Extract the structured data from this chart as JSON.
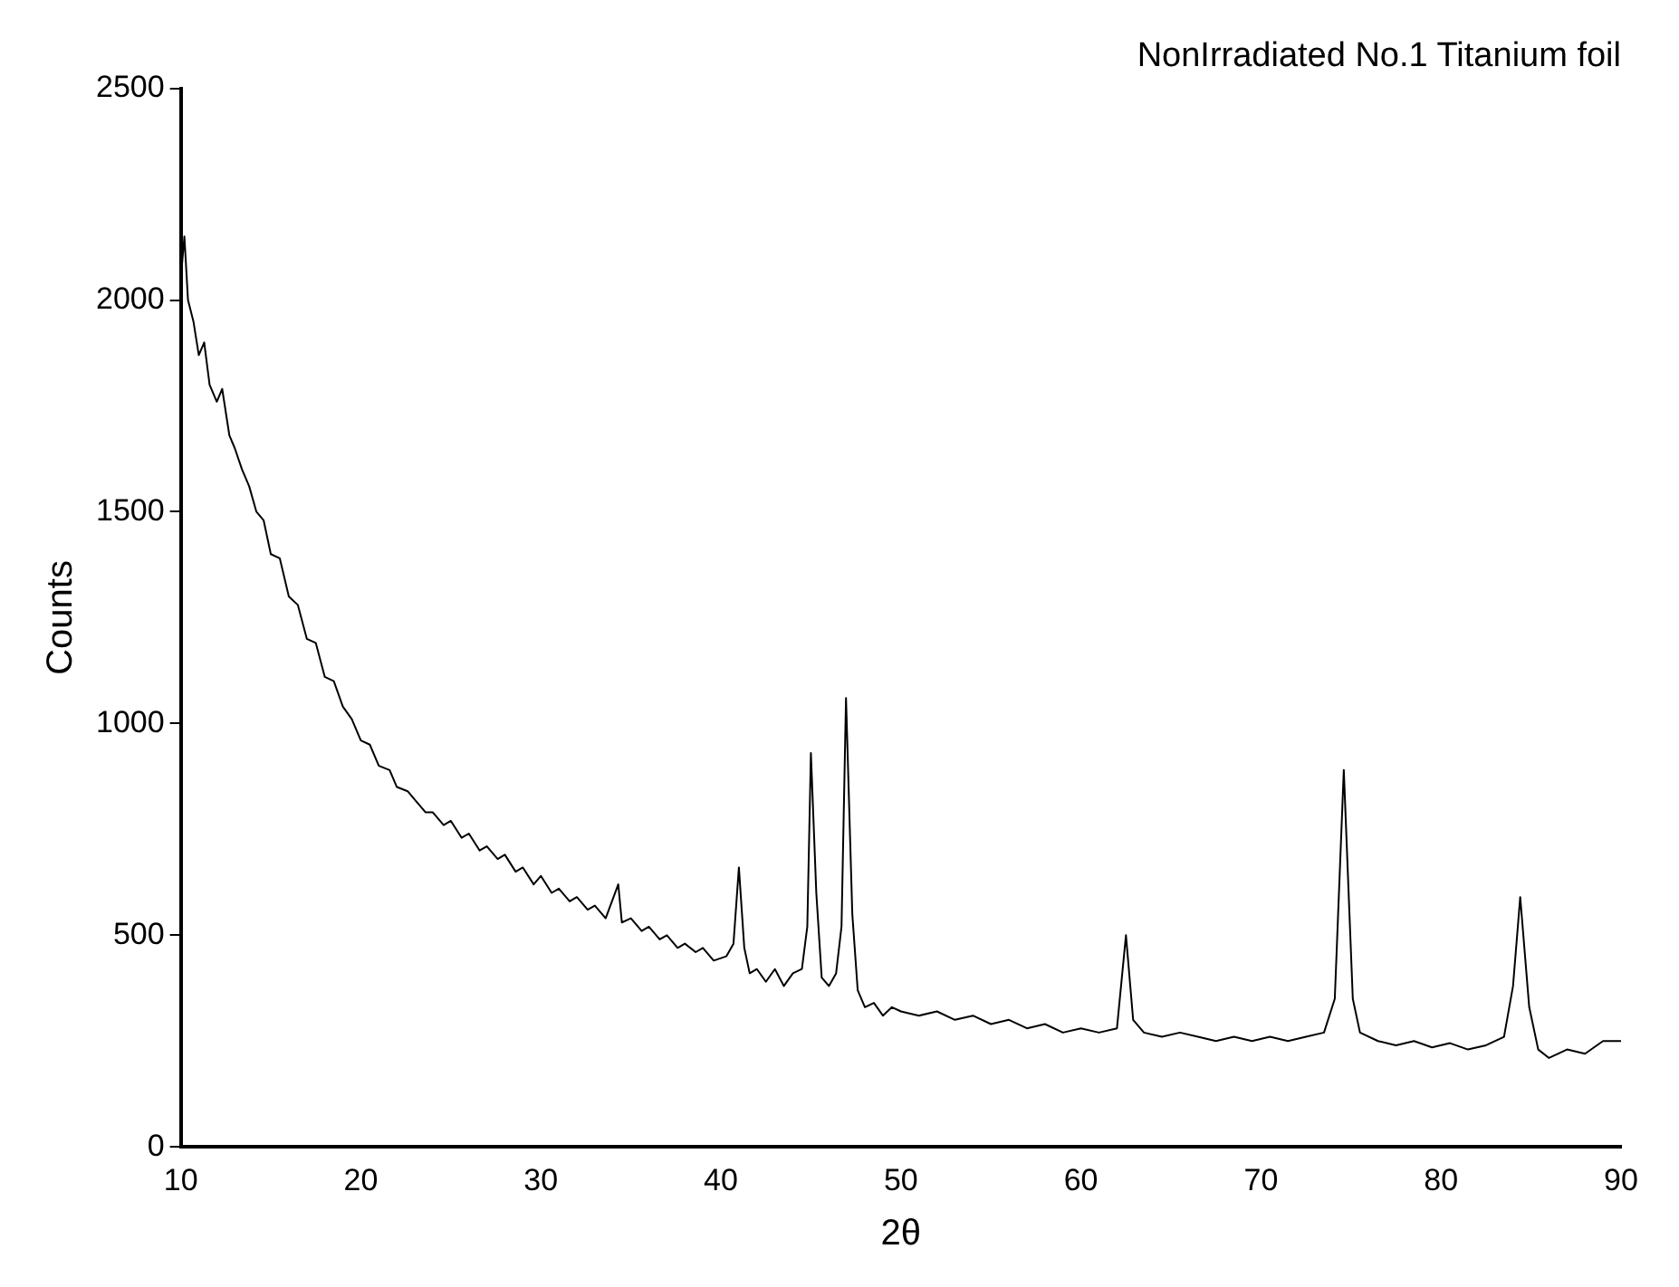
{
  "chart_data": {
    "type": "line",
    "title": "NonIrradiated No.1 Titanium foil",
    "xlabel": "2θ",
    "ylabel": "Counts",
    "xlim": [
      10,
      90
    ],
    "xticks": [
      10,
      20,
      30,
      40,
      50,
      60,
      70,
      80,
      90
    ],
    "ylim": [
      0,
      2500
    ],
    "yticks": [
      0,
      500,
      1000,
      1500,
      2000,
      2500
    ],
    "grid": false,
    "legend": false,
    "marker": "none",
    "line_style": "solid",
    "series": [
      {
        "color": "#000000",
        "x": [
          10,
          10.2,
          10.4,
          10.7,
          11,
          11.3,
          11.6,
          12,
          12.3,
          12.7,
          13,
          13.4,
          13.8,
          14.2,
          14.6,
          15,
          15.5,
          16,
          16.5,
          17,
          17.5,
          18,
          18.5,
          19,
          19.5,
          20,
          20.5,
          21,
          21.6,
          22,
          22.6,
          23,
          23.6,
          24,
          24.6,
          25,
          25.6,
          26,
          26.6,
          27,
          27.6,
          28,
          28.6,
          29,
          29.6,
          30,
          30.6,
          31,
          31.6,
          32,
          32.6,
          33,
          33.6,
          34.3,
          34.5,
          35,
          35.6,
          36,
          36.6,
          37,
          37.6,
          38,
          38.6,
          39,
          39.6,
          40.3,
          40.7,
          41,
          41.3,
          41.6,
          42,
          42.5,
          43,
          43.5,
          44,
          44.5,
          44.8,
          45,
          45.3,
          45.6,
          46,
          46.4,
          46.7,
          46.95,
          47.3,
          47.6,
          48,
          48.5,
          49,
          49.5,
          50,
          51,
          52,
          53,
          54,
          55,
          56,
          57,
          58,
          59,
          60,
          61,
          62,
          62.5,
          62.9,
          63.5,
          64.5,
          65.5,
          66.5,
          67.5,
          68.5,
          69.5,
          70.5,
          71.5,
          72.5,
          73.5,
          74.1,
          74.6,
          75.1,
          75.5,
          76.5,
          77.5,
          78.5,
          79.5,
          80.5,
          81.5,
          82.5,
          83.5,
          84,
          84.4,
          84.9,
          85.4,
          86,
          87,
          88,
          89,
          90
        ],
        "values": [
          2050,
          2150,
          2000,
          1950,
          1870,
          1900,
          1800,
          1760,
          1790,
          1680,
          1650,
          1600,
          1560,
          1500,
          1480,
          1400,
          1390,
          1300,
          1280,
          1200,
          1190,
          1110,
          1100,
          1040,
          1010,
          960,
          950,
          900,
          890,
          850,
          840,
          820,
          790,
          790,
          760,
          770,
          730,
          740,
          700,
          710,
          680,
          690,
          650,
          660,
          620,
          640,
          600,
          610,
          580,
          590,
          560,
          570,
          540,
          620,
          530,
          540,
          510,
          520,
          490,
          500,
          470,
          480,
          460,
          470,
          440,
          450,
          480,
          660,
          470,
          410,
          420,
          390,
          420,
          380,
          410,
          420,
          520,
          930,
          600,
          400,
          380,
          410,
          520,
          1060,
          550,
          370,
          330,
          340,
          310,
          330,
          320,
          310,
          320,
          300,
          310,
          290,
          300,
          280,
          290,
          270,
          280,
          270,
          280,
          500,
          300,
          270,
          260,
          270,
          260,
          250,
          260,
          250,
          260,
          250,
          260,
          270,
          350,
          890,
          350,
          270,
          250,
          240,
          250,
          235,
          245,
          230,
          240,
          260,
          380,
          590,
          330,
          230,
          210,
          230,
          220,
          250,
          250
        ]
      }
    ]
  }
}
